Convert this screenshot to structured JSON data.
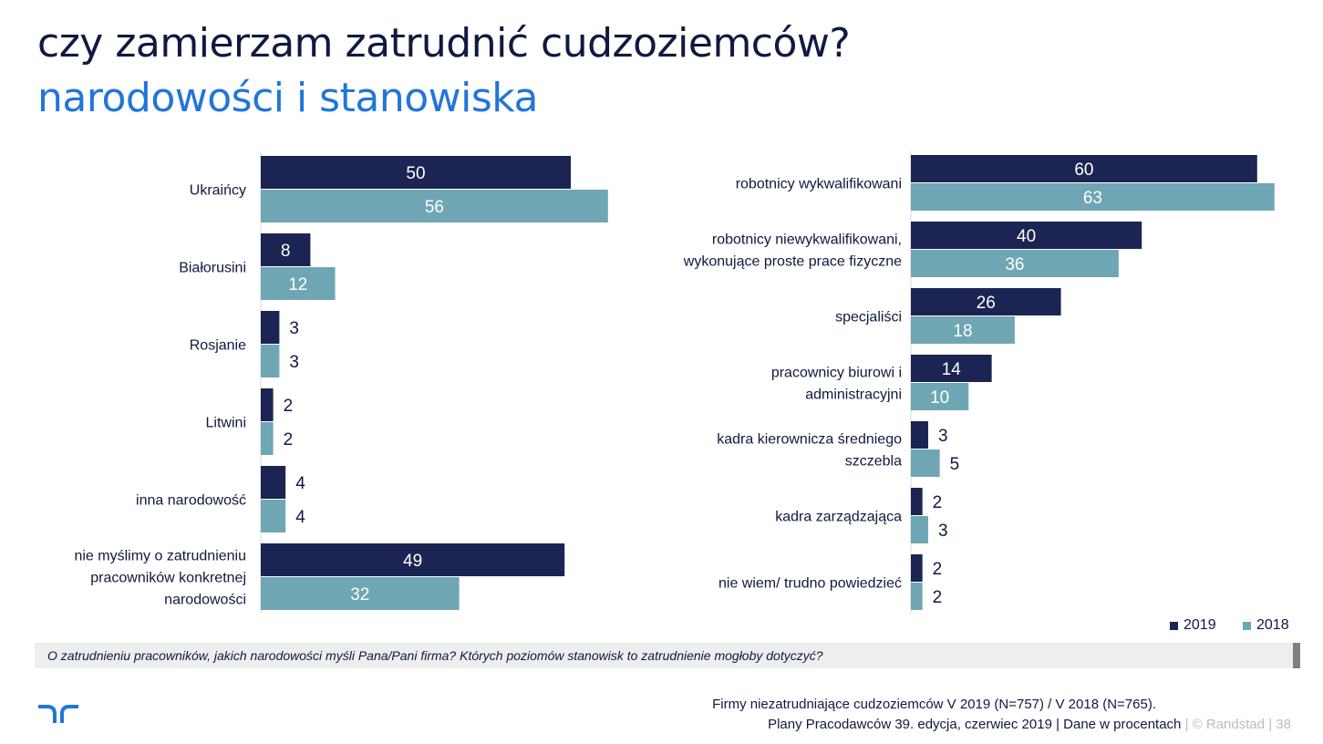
{
  "header": {
    "title": "czy zamierzam zatrudnić cudzoziemców?",
    "subtitle": "narodowości i stanowiska"
  },
  "colors": {
    "series_2019": "#1b2452",
    "series_2018": "#6fa6b3",
    "title": "#0f1941",
    "accent": "#2175d9"
  },
  "chart_data": [
    {
      "type": "bar",
      "orientation": "horizontal",
      "categories": [
        "Ukraińcy",
        "Białorusini",
        "Rosjanie",
        "Litwini",
        "inna narodowość",
        "nie myślimy o zatrudnieniu pracowników konkretnej narodowości"
      ],
      "category_lines": [
        [
          "Ukraińcy"
        ],
        [
          "Białorusini"
        ],
        [
          "Rosjanie"
        ],
        [
          "Litwini"
        ],
        [
          "inna narodowość"
        ],
        [
          "nie myślimy o zatrudnieniu",
          "pracowników konkretnej",
          "narodowości"
        ]
      ],
      "series": [
        {
          "name": "2019",
          "values": [
            50,
            8,
            3,
            2,
            4,
            49
          ]
        },
        {
          "name": "2018",
          "values": [
            56,
            12,
            3,
            2,
            4,
            32
          ]
        }
      ],
      "unit": "%"
    },
    {
      "type": "bar",
      "orientation": "horizontal",
      "categories": [
        "robotnicy wykwalifikowani",
        "robotnicy niewykwalifikowani, wykonujące proste prace fizyczne",
        "specjaliści",
        "pracownicy biurowi i administracyjni",
        "kadra kierownicza średniego szczebla",
        "kadra zarządzająca",
        "nie wiem/ trudno powiedzieć"
      ],
      "category_lines": [
        [
          "robotnicy wykwalifikowani"
        ],
        [
          "robotnicy niewykwalifikowani,",
          "wykonujące proste prace fizyczne"
        ],
        [
          "specjaliści"
        ],
        [
          "pracownicy biurowi i",
          "administracyjni"
        ],
        [
          "kadra kierownicza średniego",
          "szczebla"
        ],
        [
          "kadra zarządzająca"
        ],
        [
          "nie wiem/ trudno powiedzieć"
        ]
      ],
      "series": [
        {
          "name": "2019",
          "values": [
            60,
            40,
            26,
            14,
            3,
            2,
            2
          ]
        },
        {
          "name": "2018",
          "values": [
            63,
            36,
            18,
            10,
            5,
            3,
            2
          ]
        }
      ],
      "unit": "%"
    }
  ],
  "legend": {
    "items": [
      "2019",
      "2018"
    ]
  },
  "question": "O zatrudnieniu pracowników, jakich narodowości myśli Pana/Pani firma? Których poziomów stanowisk to zatrudnienie mogłoby dotyczyć?",
  "footer": {
    "base": "Firmy niezatrudniające cudzoziemców V 2019 (N=757) / V 2018 (N=765).",
    "source": "Plany Pracodawców 39. edycja, czerwiec 2019  | Dane w procentach",
    "copyright": " |  © Randstad  |  38"
  }
}
